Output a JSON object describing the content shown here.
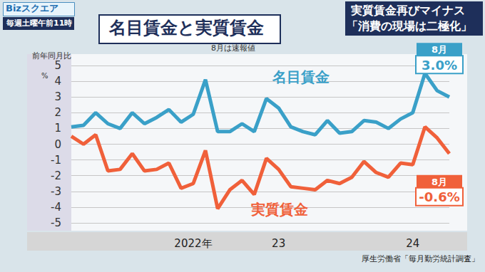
{
  "screen": {
    "logo": "Bizスクエア",
    "schedule": "毎週土曜午前11時",
    "headline": [
      "実質賃金再びマイナス",
      "「消費の現場は二極化」"
    ]
  },
  "chart_data": {
    "type": "line",
    "title": "名目賃金と実質賃金",
    "subtitle": "8月は速報値",
    "y_label": "前年同月比",
    "y_unit": "%",
    "source": "厚生労働省「毎月勤労統計調査」",
    "categories": [
      null,
      null,
      null,
      null,
      null,
      null,
      null,
      null,
      null,
      null,
      "2022年",
      null,
      null,
      null,
      null,
      null,
      null,
      "23",
      null,
      null,
      null,
      null,
      null,
      null,
      null,
      null,
      null,
      null,
      "24",
      null,
      null,
      null
    ],
    "series": [
      {
        "name": "名目賃金",
        "color": "#3aa0c8",
        "annotation": "8月",
        "values": [
          1.1,
          1.2,
          2.0,
          1.3,
          1.0,
          2.0,
          1.3,
          1.7,
          2.2,
          1.4,
          1.9,
          4.1,
          0.8,
          0.8,
          1.3,
          0.8,
          2.9,
          2.3,
          1.1,
          0.8,
          0.6,
          1.5,
          0.7,
          0.8,
          1.5,
          1.4,
          1.0,
          1.6,
          2.0,
          4.5,
          3.4,
          3.0
        ],
        "value_labels": [
          null,
          null,
          null,
          null,
          null,
          null,
          null,
          null,
          null,
          null,
          null,
          null,
          null,
          null,
          null,
          null,
          null,
          null,
          null,
          null,
          null,
          null,
          null,
          null,
          null,
          null,
          null,
          null,
          null,
          null,
          null,
          "3.0%"
        ]
      },
      {
        "name": "実質賃金",
        "color": "#f0603a",
        "annotation": "8月",
        "values": [
          0.5,
          0.0,
          0.6,
          -1.7,
          -1.6,
          -0.6,
          -1.7,
          -1.6,
          -1.2,
          -2.8,
          -2.5,
          -0.4,
          -4.1,
          -2.9,
          -2.3,
          -3.2,
          -0.9,
          -1.6,
          -2.7,
          -2.8,
          -2.9,
          -2.3,
          -2.5,
          -2.1,
          -1.1,
          -1.8,
          -2.1,
          -1.2,
          -1.3,
          1.1,
          0.4,
          -0.6
        ],
        "value_labels": [
          null,
          null,
          null,
          null,
          null,
          null,
          null,
          null,
          null,
          null,
          null,
          null,
          null,
          null,
          null,
          null,
          null,
          null,
          null,
          null,
          null,
          null,
          null,
          null,
          null,
          null,
          null,
          null,
          null,
          null,
          null,
          "-0.6%"
        ]
      }
    ],
    "ylim": [
      -5,
      5
    ],
    "yticks": [
      -5,
      -4,
      -3,
      -2,
      -1,
      0,
      1,
      2,
      3,
      4,
      5
    ],
    "grid": true
  }
}
